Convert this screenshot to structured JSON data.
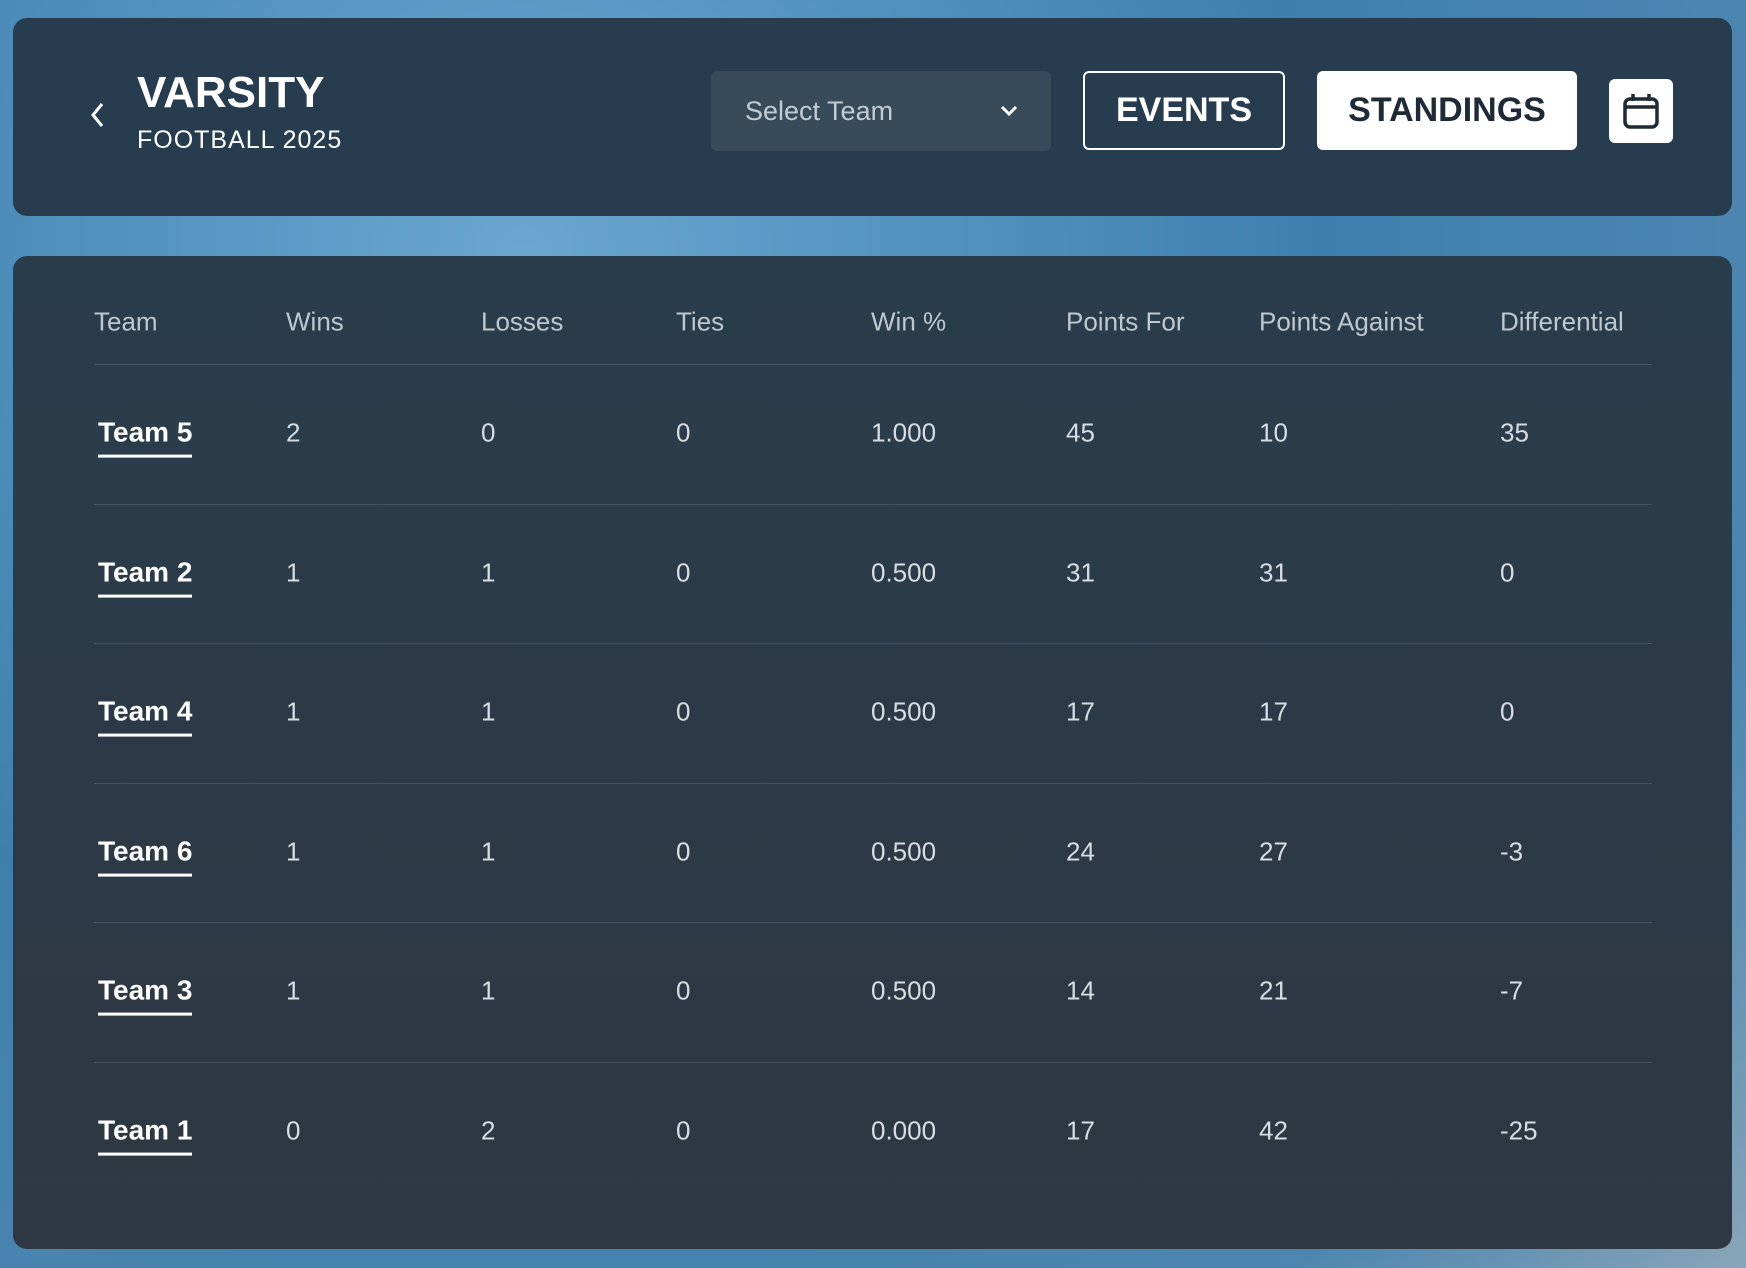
{
  "header": {
    "title": "VARSITY",
    "subtitle": "FOOTBALL 2025",
    "select": "Select Team",
    "buttons": [
      "EVENTS",
      "STANDINGS"
    ]
  },
  "table": {
    "columns": [
      "Team",
      "Wins",
      "Losses",
      "Ties",
      "Win %",
      "Points For",
      "Points Against",
      "Differential"
    ],
    "rows": [
      [
        "Team 5",
        "2",
        "0",
        "0",
        "1.000",
        "45",
        "10",
        "35"
      ],
      [
        "Team 2",
        "1",
        "1",
        "0",
        "0.500",
        "31",
        "31",
        "0"
      ],
      [
        "Team 4",
        "1",
        "1",
        "0",
        "0.500",
        "17",
        "17",
        "0"
      ],
      [
        "Team 6",
        "1",
        "1",
        "0",
        "0.500",
        "24",
        "27",
        "-3"
      ],
      [
        "Team 3",
        "1",
        "1",
        "0",
        "0.500",
        "14",
        "21",
        "-7"
      ],
      [
        "Team 1",
        "0",
        "2",
        "0",
        "0.000",
        "17",
        "42",
        "-25"
      ]
    ]
  }
}
